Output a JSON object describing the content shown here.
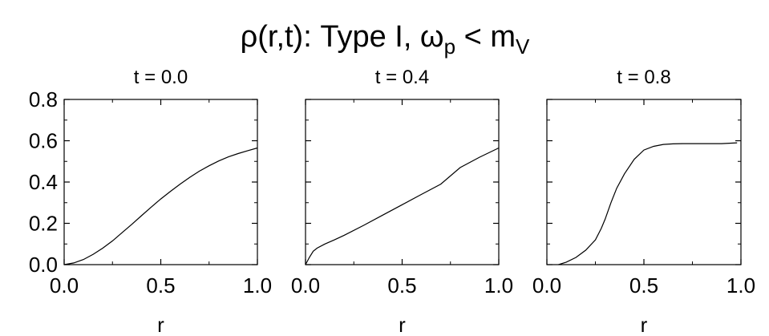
{
  "figure": {
    "title_main": "ρ(r,t): Type I, ω",
    "title_sub1": "p",
    "title_mid": " < m",
    "title_sub2": "V"
  },
  "chart_data": [
    {
      "type": "line",
      "title": "t = 0.0",
      "xlabel": "r",
      "ylabel": "",
      "xlim": [
        0.0,
        1.0
      ],
      "ylim": [
        0.0,
        0.8
      ],
      "xticks": [
        "0.0",
        "0.5",
        "1.0"
      ],
      "yticks": [
        "0.0",
        "0.2",
        "0.4",
        "0.6",
        "0.8"
      ],
      "series": [
        {
          "x": [
            0.0,
            0.05,
            0.1,
            0.15,
            0.2,
            0.25,
            0.3,
            0.35,
            0.4,
            0.45,
            0.5,
            0.55,
            0.6,
            0.65,
            0.7,
            0.75,
            0.8,
            0.85,
            0.9,
            0.95,
            1.0
          ],
          "y": [
            0.0,
            0.008,
            0.025,
            0.05,
            0.08,
            0.115,
            0.155,
            0.195,
            0.237,
            0.278,
            0.318,
            0.355,
            0.39,
            0.423,
            0.453,
            0.479,
            0.502,
            0.522,
            0.538,
            0.552,
            0.565
          ]
        }
      ]
    },
    {
      "type": "line",
      "title": "t = 0.4",
      "xlabel": "r",
      "ylabel": "",
      "xlim": [
        0.0,
        1.0
      ],
      "ylim": [
        0.0,
        0.8
      ],
      "xticks": [
        "0.0",
        "0.5",
        "1.0"
      ],
      "yticks": [],
      "series": [
        {
          "x": [
            0.0,
            0.02,
            0.04,
            0.06,
            0.1,
            0.15,
            0.2,
            0.3,
            0.4,
            0.5,
            0.6,
            0.7,
            0.8,
            0.9,
            1.0
          ],
          "y": [
            0.0,
            0.035,
            0.065,
            0.08,
            0.1,
            0.12,
            0.142,
            0.19,
            0.24,
            0.29,
            0.34,
            0.39,
            0.47,
            0.52,
            0.565
          ]
        }
      ]
    },
    {
      "type": "line",
      "title": "t = 0.8",
      "xlabel": "r",
      "ylabel": "",
      "xlim": [
        0.0,
        1.0
      ],
      "ylim": [
        0.0,
        0.8
      ],
      "xticks": [
        "0.0",
        "0.5",
        "1.0"
      ],
      "yticks": [],
      "series": [
        {
          "x": [
            0.06,
            0.1,
            0.15,
            0.2,
            0.25,
            0.28,
            0.3,
            0.33,
            0.36,
            0.4,
            0.45,
            0.5,
            0.55,
            0.6,
            0.65,
            0.7,
            0.8,
            0.9,
            0.98
          ],
          "y": [
            0.0,
            0.012,
            0.035,
            0.07,
            0.12,
            0.175,
            0.22,
            0.3,
            0.37,
            0.44,
            0.51,
            0.555,
            0.573,
            0.582,
            0.585,
            0.586,
            0.586,
            0.586,
            0.59
          ]
        }
      ]
    }
  ]
}
